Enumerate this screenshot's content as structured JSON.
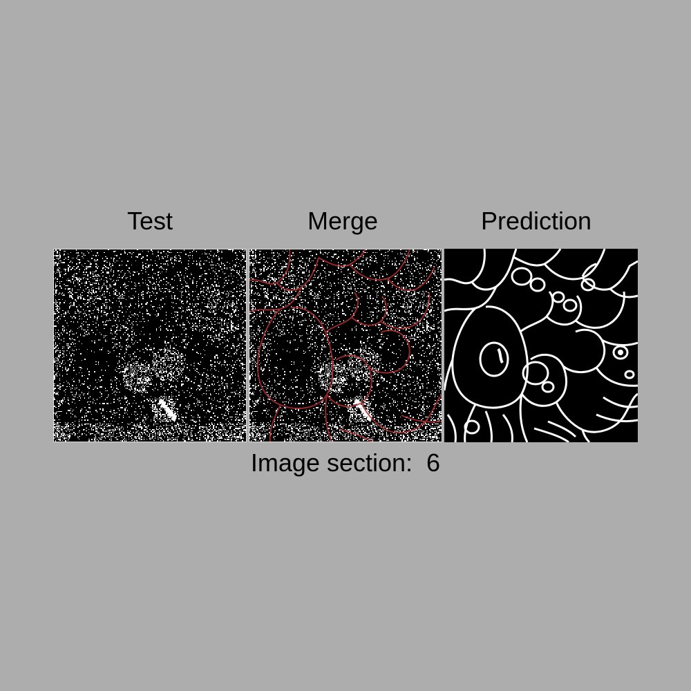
{
  "panels": {
    "test_title": "Test",
    "merge_title": "Merge",
    "prediction_title": "Prediction"
  },
  "caption": {
    "label": "Image section:",
    "value": "6"
  },
  "colors": {
    "background": "#adadad",
    "image_background": "#000000",
    "foreground": "#ffffff",
    "overlay": "#b03030"
  }
}
